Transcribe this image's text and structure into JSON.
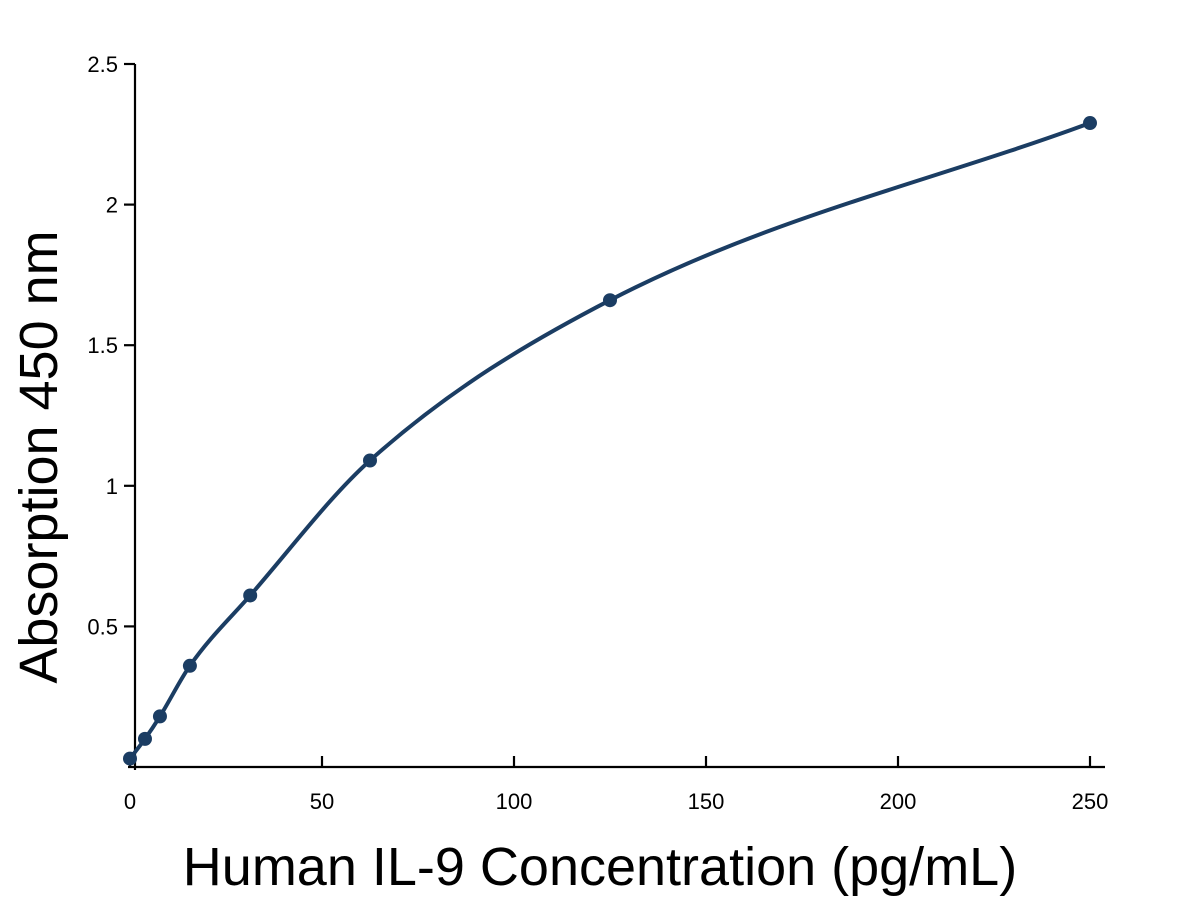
{
  "chart_data": {
    "type": "line",
    "title": "",
    "xlabel": "Human IL-9 Concentration (pg/mL)",
    "ylabel": "Absorption 450 nm",
    "xlim": [
      0,
      250
    ],
    "ylim": [
      0,
      2.5
    ],
    "x_ticks": [
      "0",
      "50",
      "100",
      "150",
      "200",
      "250"
    ],
    "y_ticks": [
      "0.5",
      "1",
      "1.5",
      "2",
      "2.5"
    ],
    "grid": false,
    "legend": "none",
    "color": "#1b3d63",
    "series": [
      {
        "x": [
          0,
          3.9,
          7.8,
          15.6,
          31.3,
          62.5,
          125,
          250
        ],
        "y": [
          0.03,
          0.1,
          0.18,
          0.36,
          0.61,
          1.09,
          1.66,
          2.29
        ]
      }
    ]
  }
}
